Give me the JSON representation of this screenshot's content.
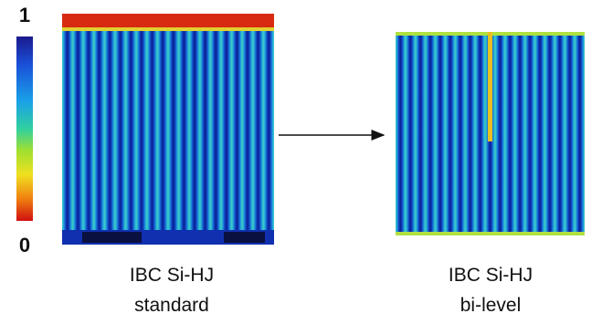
{
  "colorbar": {
    "max_label": "1",
    "min_label": "0"
  },
  "panels": [
    {
      "title": "IBC Si-HJ",
      "subtitle": "standard"
    },
    {
      "title": "IBC Si-HJ",
      "subtitle": "bi-level"
    }
  ]
}
